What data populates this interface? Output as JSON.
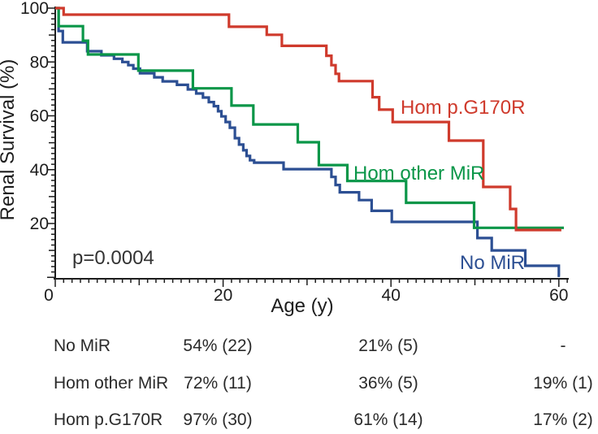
{
  "chart_data": {
    "type": "line",
    "subtype": "kaplan-meier-step",
    "title": "",
    "xlabel": "Age (y)",
    "ylabel": "Renal Survival (%)",
    "annotation": "p=0.0004",
    "xlim": [
      0,
      61
    ],
    "ylim": [
      0,
      100
    ],
    "grid": "off",
    "axis_color": "#1d1d1d",
    "x_ticks_labeled": [
      0,
      20,
      40,
      60
    ],
    "x_minor_step": 1,
    "x_medium_step": 10,
    "y_ticks_labeled": [
      20,
      40,
      60,
      80,
      100
    ],
    "y_minor_step": 2,
    "y_medium_step": 10,
    "legend_position": "inline-labels",
    "series": [
      {
        "name": "No MiR",
        "color": "#2c4f93",
        "end_age": 60.15,
        "points": [
          [
            0,
            100
          ],
          [
            0.4,
            91.5
          ],
          [
            0.9,
            87.3
          ],
          [
            3.8,
            84
          ],
          [
            5.5,
            82.5
          ],
          [
            7,
            81.2
          ],
          [
            8,
            80
          ],
          [
            8.7,
            78.8
          ],
          [
            9.3,
            77.5
          ],
          [
            10.1,
            75.8
          ],
          [
            11.8,
            74.3
          ],
          [
            12.8,
            72.8
          ],
          [
            14.5,
            71.5
          ],
          [
            15.8,
            69.8
          ],
          [
            16.8,
            68.3
          ],
          [
            17.6,
            66.8
          ],
          [
            18.3,
            65.1
          ],
          [
            18.9,
            63.6
          ],
          [
            19.4,
            61.7
          ],
          [
            19.8,
            59.8
          ],
          [
            20.3,
            57.7
          ],
          [
            20.8,
            55.6
          ],
          [
            21.4,
            51.7
          ],
          [
            21.9,
            49.3
          ],
          [
            22.4,
            47.2
          ],
          [
            22.8,
            45.1
          ],
          [
            23.2,
            43.5
          ],
          [
            23.7,
            42.6
          ],
          [
            27.2,
            40.2
          ],
          [
            32.9,
            37.3
          ],
          [
            33.4,
            34.3
          ],
          [
            33.9,
            31.6
          ],
          [
            36.2,
            28.7
          ],
          [
            37.7,
            24.7
          ],
          [
            40.1,
            20.6
          ],
          [
            50.3,
            14.6
          ],
          [
            52,
            10
          ],
          [
            56,
            4.3
          ],
          [
            60,
            0.6
          ]
        ]
      },
      {
        "name": "Hom other MiR",
        "color": "#0a9648",
        "end_age": 60.6,
        "points": [
          [
            0,
            100
          ],
          [
            0.4,
            93.3
          ],
          [
            3.3,
            87.9
          ],
          [
            3.9,
            82.8
          ],
          [
            9.9,
            76.8
          ],
          [
            16.4,
            70.2
          ],
          [
            21,
            63.8
          ],
          [
            23.6,
            56.8
          ],
          [
            28.9,
            50.2
          ],
          [
            31.4,
            41.7
          ],
          [
            34.8,
            35.8
          ],
          [
            41.8,
            27.7
          ],
          [
            49.9,
            18.4
          ]
        ]
      },
      {
        "name": "Hom p.G170R",
        "color": "#cf3a2c",
        "end_age": 60.3,
        "points": [
          [
            0,
            100
          ],
          [
            1,
            97.6
          ],
          [
            20.7,
            93.1
          ],
          [
            25.2,
            90.1
          ],
          [
            27,
            86
          ],
          [
            32.3,
            82.3
          ],
          [
            32.9,
            78.8
          ],
          [
            33.4,
            75.6
          ],
          [
            33.8,
            72.9
          ],
          [
            37.8,
            66.9
          ],
          [
            38.6,
            62.3
          ],
          [
            40.2,
            57.7
          ],
          [
            46.9,
            50.8
          ],
          [
            51,
            33.6
          ],
          [
            54.2,
            25.4
          ],
          [
            54.9,
            17.6
          ],
          [
            60,
            17.6
          ]
        ]
      }
    ]
  },
  "survival_table": {
    "rows": [
      {
        "label": "No MiR",
        "values": [
          "54% (22)",
          "21% (5)",
          "-"
        ]
      },
      {
        "label": "Hom other MiR",
        "values": [
          "72% (11)",
          "36% (5)",
          "19% (1)"
        ]
      },
      {
        "label": "Hom p.G170R",
        "values": [
          "97% (30)",
          "61% (14)",
          "17% (2)"
        ]
      }
    ]
  }
}
